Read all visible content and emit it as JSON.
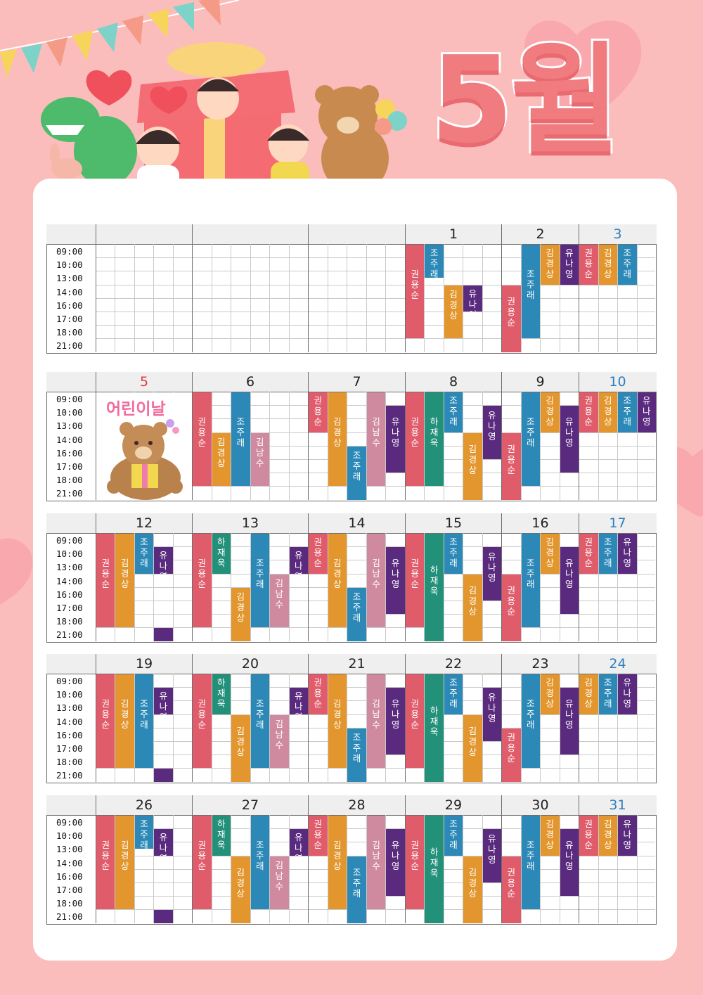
{
  "title": "5월",
  "time_slots": [
    "09:00",
    "10:00",
    "13:00",
    "14:00",
    "16:00",
    "17:00",
    "18:00",
    "21:00"
  ],
  "colors": {
    "권용순": "#e05c6b",
    "김경상": "#e3962e",
    "조주래": "#2c89b7",
    "유나영": "#5a2a7e",
    "하재욱": "#239079",
    "김남수": "#cf8a9f"
  },
  "holiday_label": "어린이날",
  "weeks": [
    {
      "days": [
        {
          "label": "",
          "color": "normal",
          "blocks": []
        },
        {
          "label": "",
          "color": "normal",
          "blocks": []
        },
        {
          "label": "",
          "color": "normal",
          "blocks": []
        },
        {
          "label": "1",
          "color": "normal",
          "blocks": [
            {
              "name": "권용순",
              "col": 0,
              "start": 0,
              "end": 7
            },
            {
              "name": "조주래",
              "col": 1,
              "start": 0,
              "end": 2.5
            },
            {
              "name": "김경상",
              "col": 2,
              "start": 3,
              "end": 7
            },
            {
              "name": "유나영",
              "col": 3,
              "start": 3,
              "end": 5
            }
          ]
        },
        {
          "label": "2",
          "color": "normal",
          "blocks": [
            {
              "name": "권용순",
              "col": 0,
              "start": 3,
              "end": 8
            },
            {
              "name": "조주래",
              "col": 1,
              "start": 0,
              "end": 7
            },
            {
              "name": "김경상",
              "col": 2,
              "start": 0,
              "end": 3
            },
            {
              "name": "유나영",
              "col": 3,
              "start": 0,
              "end": 3
            }
          ]
        },
        {
          "label": "3",
          "color": "blue",
          "blocks": [
            {
              "name": "권용순",
              "col": 0,
              "start": 0,
              "end": 3
            },
            {
              "name": "김경상",
              "col": 1,
              "start": 0,
              "end": 3
            },
            {
              "name": "조주래",
              "col": 2,
              "start": 0,
              "end": 3
            }
          ]
        }
      ]
    },
    {
      "days": [
        {
          "label": "5",
          "color": "red",
          "holiday": true,
          "blocks": []
        },
        {
          "label": "6",
          "color": "normal",
          "blocks": [
            {
              "name": "권용순",
              "col": 0,
              "start": 0,
              "end": 7
            },
            {
              "name": "김경상",
              "col": 1,
              "start": 3,
              "end": 7
            },
            {
              "name": "조주래",
              "col": 2,
              "start": 0,
              "end": 7
            },
            {
              "name": "김남수",
              "col": 3,
              "start": 3,
              "end": 7
            }
          ]
        },
        {
          "label": "7",
          "color": "normal",
          "blocks": [
            {
              "name": "권용순",
              "col": 0,
              "start": 0,
              "end": 3
            },
            {
              "name": "김경상",
              "col": 1,
              "start": 0,
              "end": 7
            },
            {
              "name": "조주래",
              "col": 2,
              "start": 4,
              "end": 8
            },
            {
              "name": "김남수",
              "col": 3,
              "start": 0,
              "end": 7
            },
            {
              "name": "유나영",
              "col": 4,
              "start": 1,
              "end": 6
            }
          ]
        },
        {
          "label": "8",
          "color": "normal",
          "blocks": [
            {
              "name": "권용순",
              "col": 0,
              "start": 0,
              "end": 7
            },
            {
              "name": "하재욱",
              "col": 1,
              "start": 0,
              "end": 7
            },
            {
              "name": "조주래",
              "col": 2,
              "start": 0,
              "end": 3
            },
            {
              "name": "김경상",
              "col": 3,
              "start": 3,
              "end": 8
            },
            {
              "name": "유나영",
              "col": 4,
              "start": 1,
              "end": 5
            }
          ]
        },
        {
          "label": "9",
          "color": "normal",
          "blocks": [
            {
              "name": "권용순",
              "col": 0,
              "start": 3,
              "end": 8
            },
            {
              "name": "조주래",
              "col": 1,
              "start": 0,
              "end": 7
            },
            {
              "name": "김경상",
              "col": 2,
              "start": 0,
              "end": 3
            },
            {
              "name": "유나영",
              "col": 3,
              "start": 1,
              "end": 6
            }
          ]
        },
        {
          "label": "10",
          "color": "blue",
          "blocks": [
            {
              "name": "권용순",
              "col": 0,
              "start": 0,
              "end": 3
            },
            {
              "name": "김경상",
              "col": 1,
              "start": 0,
              "end": 3
            },
            {
              "name": "조주래",
              "col": 2,
              "start": 0,
              "end": 3
            },
            {
              "name": "유나영",
              "col": 3,
              "start": 0,
              "end": 3
            }
          ]
        }
      ]
    },
    {
      "days": [
        {
          "label": "12",
          "color": "normal",
          "blocks": [
            {
              "name": "권용순",
              "col": 0,
              "start": 0,
              "end": 7
            },
            {
              "name": "김경상",
              "col": 1,
              "start": 0,
              "end": 7
            },
            {
              "name": "조주래",
              "col": 2,
              "start": 0,
              "end": 3
            },
            {
              "name": "유나영",
              "col": 3,
              "start": 1,
              "end": 3
            },
            {
              "name": "",
              "col": 3,
              "start": 7,
              "end": 8,
              "color": "#5a2a7e"
            }
          ]
        },
        {
          "label": "13",
          "color": "normal",
          "blocks": [
            {
              "name": "권용순",
              "col": 0,
              "start": 0,
              "end": 7
            },
            {
              "name": "하재욱",
              "col": 1,
              "start": 0,
              "end": 3
            },
            {
              "name": "김경상",
              "col": 2,
              "start": 4,
              "end": 8
            },
            {
              "name": "조주래",
              "col": 3,
              "start": 0,
              "end": 7
            },
            {
              "name": "김남수",
              "col": 4,
              "start": 3,
              "end": 7
            },
            {
              "name": "유나영",
              "col": 5,
              "start": 1,
              "end": 3
            }
          ]
        },
        {
          "label": "14",
          "color": "normal",
          "blocks": [
            {
              "name": "권용순",
              "col": 0,
              "start": 0,
              "end": 3
            },
            {
              "name": "김경상",
              "col": 1,
              "start": 0,
              "end": 7
            },
            {
              "name": "조주래",
              "col": 2,
              "start": 4,
              "end": 8
            },
            {
              "name": "김남수",
              "col": 3,
              "start": 0,
              "end": 7
            },
            {
              "name": "유나영",
              "col": 4,
              "start": 1,
              "end": 6
            }
          ]
        },
        {
          "label": "15",
          "color": "normal",
          "blocks": [
            {
              "name": "권용순",
              "col": 0,
              "start": 0,
              "end": 7
            },
            {
              "name": "하재욱",
              "col": 1,
              "start": 0,
              "end": 8
            },
            {
              "name": "조주래",
              "col": 2,
              "start": 0,
              "end": 3
            },
            {
              "name": "김경상",
              "col": 3,
              "start": 3,
              "end": 8
            },
            {
              "name": "유나영",
              "col": 4,
              "start": 1,
              "end": 5
            }
          ]
        },
        {
          "label": "16",
          "color": "normal",
          "blocks": [
            {
              "name": "권용순",
              "col": 0,
              "start": 3,
              "end": 8
            },
            {
              "name": "조주래",
              "col": 1,
              "start": 0,
              "end": 7
            },
            {
              "name": "김경상",
              "col": 2,
              "start": 0,
              "end": 3
            },
            {
              "name": "유나영",
              "col": 3,
              "start": 1,
              "end": 6
            }
          ]
        },
        {
          "label": "17",
          "color": "blue",
          "blocks": [
            {
              "name": "권용순",
              "col": 0,
              "start": 0,
              "end": 3
            },
            {
              "name": "조주래",
              "col": 1,
              "start": 0,
              "end": 3
            },
            {
              "name": "유나영",
              "col": 2,
              "start": 0,
              "end": 3
            }
          ]
        }
      ]
    },
    {
      "days": [
        {
          "label": "19",
          "color": "normal",
          "blocks": [
            {
              "name": "권용순",
              "col": 0,
              "start": 0,
              "end": 7
            },
            {
              "name": "김경상",
              "col": 1,
              "start": 0,
              "end": 7
            },
            {
              "name": "조주래",
              "col": 2,
              "start": 0,
              "end": 7
            },
            {
              "name": "유나영",
              "col": 3,
              "start": 1,
              "end": 3
            },
            {
              "name": "",
              "col": 3,
              "start": 7,
              "end": 8,
              "color": "#5a2a7e"
            }
          ]
        },
        {
          "label": "20",
          "color": "normal",
          "blocks": [
            {
              "name": "권용순",
              "col": 0,
              "start": 0,
              "end": 7
            },
            {
              "name": "하재욱",
              "col": 1,
              "start": 0,
              "end": 3
            },
            {
              "name": "김경상",
              "col": 2,
              "start": 3,
              "end": 8
            },
            {
              "name": "조주래",
              "col": 3,
              "start": 0,
              "end": 7
            },
            {
              "name": "김남수",
              "col": 4,
              "start": 3,
              "end": 7
            },
            {
              "name": "유나영",
              "col": 5,
              "start": 1,
              "end": 3
            }
          ]
        },
        {
          "label": "21",
          "color": "normal",
          "blocks": [
            {
              "name": "권용순",
              "col": 0,
              "start": 0,
              "end": 3
            },
            {
              "name": "김경상",
              "col": 1,
              "start": 0,
              "end": 7
            },
            {
              "name": "조주래",
              "col": 2,
              "start": 4,
              "end": 8
            },
            {
              "name": "김남수",
              "col": 3,
              "start": 0,
              "end": 7
            },
            {
              "name": "유나영",
              "col": 4,
              "start": 1,
              "end": 6
            }
          ]
        },
        {
          "label": "22",
          "color": "normal",
          "blocks": [
            {
              "name": "권용순",
              "col": 0,
              "start": 0,
              "end": 7
            },
            {
              "name": "하재욱",
              "col": 1,
              "start": 0,
              "end": 8
            },
            {
              "name": "조주래",
              "col": 2,
              "start": 0,
              "end": 3
            },
            {
              "name": "김경상",
              "col": 3,
              "start": 3,
              "end": 8
            },
            {
              "name": "유나영",
              "col": 4,
              "start": 1,
              "end": 5
            }
          ]
        },
        {
          "label": "23",
          "color": "normal",
          "blocks": [
            {
              "name": "권용순",
              "col": 0,
              "start": 4,
              "end": 8
            },
            {
              "name": "조주래",
              "col": 1,
              "start": 0,
              "end": 7
            },
            {
              "name": "김경상",
              "col": 2,
              "start": 0,
              "end": 3
            },
            {
              "name": "유나영",
              "col": 3,
              "start": 1,
              "end": 6
            }
          ]
        },
        {
          "label": "24",
          "color": "blue",
          "blocks": [
            {
              "name": "김경상",
              "col": 0,
              "start": 0,
              "end": 3
            },
            {
              "name": "조주래",
              "col": 1,
              "start": 0,
              "end": 3
            },
            {
              "name": "유나영",
              "col": 2,
              "start": 0,
              "end": 3
            }
          ]
        }
      ]
    },
    {
      "days": [
        {
          "label": "26",
          "color": "normal",
          "blocks": [
            {
              "name": "권용순",
              "col": 0,
              "start": 0,
              "end": 7
            },
            {
              "name": "김경상",
              "col": 1,
              "start": 0,
              "end": 7
            },
            {
              "name": "조주래",
              "col": 2,
              "start": 0,
              "end": 2.5
            },
            {
              "name": "유나영",
              "col": 3,
              "start": 1,
              "end": 3
            },
            {
              "name": "",
              "col": 3,
              "start": 7,
              "end": 8,
              "color": "#5a2a7e"
            }
          ]
        },
        {
          "label": "27",
          "color": "normal",
          "blocks": [
            {
              "name": "권용순",
              "col": 0,
              "start": 0,
              "end": 7
            },
            {
              "name": "하재욱",
              "col": 1,
              "start": 0,
              "end": 3
            },
            {
              "name": "김경상",
              "col": 2,
              "start": 3,
              "end": 8
            },
            {
              "name": "조주래",
              "col": 3,
              "start": 0,
              "end": 7
            },
            {
              "name": "김남수",
              "col": 4,
              "start": 3,
              "end": 7
            },
            {
              "name": "유나영",
              "col": 5,
              "start": 1,
              "end": 3
            }
          ]
        },
        {
          "label": "28",
          "color": "normal",
          "blocks": [
            {
              "name": "권용순",
              "col": 0,
              "start": 0,
              "end": 3
            },
            {
              "name": "김경상",
              "col": 1,
              "start": 0,
              "end": 7
            },
            {
              "name": "조주래",
              "col": 2,
              "start": 3,
              "end": 8
            },
            {
              "name": "김남수",
              "col": 3,
              "start": 0,
              "end": 7
            },
            {
              "name": "유나영",
              "col": 4,
              "start": 1,
              "end": 6
            }
          ]
        },
        {
          "label": "29",
          "color": "normal",
          "blocks": [
            {
              "name": "권용순",
              "col": 0,
              "start": 0,
              "end": 7
            },
            {
              "name": "하재욱",
              "col": 1,
              "start": 0,
              "end": 8
            },
            {
              "name": "조주래",
              "col": 2,
              "start": 0,
              "end": 3
            },
            {
              "name": "김경상",
              "col": 3,
              "start": 3,
              "end": 8
            },
            {
              "name": "유나영",
              "col": 4,
              "start": 1,
              "end": 5
            }
          ]
        },
        {
          "label": "30",
          "color": "normal",
          "blocks": [
            {
              "name": "권용순",
              "col": 0,
              "start": 3,
              "end": 8
            },
            {
              "name": "조주래",
              "col": 1,
              "start": 0,
              "end": 7
            },
            {
              "name": "김경상",
              "col": 2,
              "start": 0,
              "end": 3
            },
            {
              "name": "유나영",
              "col": 3,
              "start": 1,
              "end": 6
            }
          ]
        },
        {
          "label": "31",
          "color": "blue",
          "blocks": [
            {
              "name": "권용순",
              "col": 0,
              "start": 0,
              "end": 3
            },
            {
              "name": "김경상",
              "col": 1,
              "start": 0,
              "end": 3
            },
            {
              "name": "유나영",
              "col": 2,
              "start": 0,
              "end": 3
            }
          ]
        }
      ]
    }
  ]
}
